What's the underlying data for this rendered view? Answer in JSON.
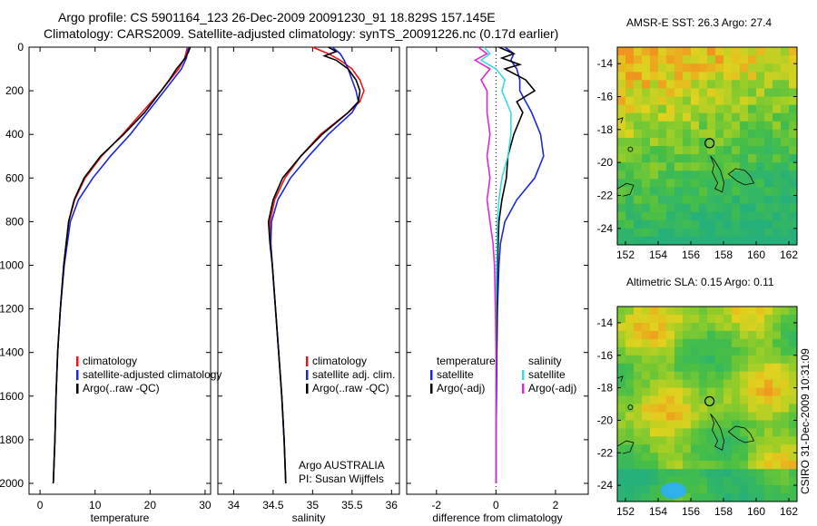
{
  "header": {
    "line1": "Argo profile: CS 5901164_123 26-Dec-2009 20091230_91 18.829S 157.145E",
    "line2": "Climatology: CARS2009. Satellite-adjusted climatology: synTS_20091226.nc (0.17d earlier)"
  },
  "footer_stamp": "CSIRO 31-Dec-2009 10:31:09",
  "colors": {
    "clim": "#e8161b",
    "sat": "#1d26d8",
    "argo": "#000000",
    "sal_sat": "#33dde0",
    "sal_argo": "#e326d8"
  },
  "chart_data": [
    {
      "type": "line",
      "id": "temperature",
      "xlabel": "temperature",
      "ylabel": "",
      "xlim": [
        -2,
        31
      ],
      "ylim": [
        2050,
        0
      ],
      "xticks": [
        0,
        10,
        20,
        30
      ],
      "yticks": [
        0,
        200,
        400,
        600,
        800,
        1000,
        1200,
        1400,
        1600,
        1800,
        2000
      ],
      "legend": [
        "climatology",
        "satellite-adjusted climatology",
        "Argo(..raw -QC)"
      ],
      "series": [
        {
          "name": "climatology",
          "color": "#e8161b",
          "depth": [
            0,
            50,
            100,
            200,
            300,
            400,
            500,
            600,
            700,
            800,
            1000,
            1200,
            1400,
            1600,
            1800,
            2000
          ],
          "values": [
            26.8,
            26.3,
            25.2,
            22.0,
            18.5,
            15.0,
            11.2,
            8.2,
            6.3,
            5.2,
            4.3,
            3.7,
            3.2,
            2.9,
            2.7,
            2.4
          ]
        },
        {
          "name": "satellite-adjusted climatology",
          "color": "#1d26d8",
          "depth": [
            0,
            50,
            100,
            200,
            300,
            400,
            500,
            600,
            700,
            800,
            1000,
            1200,
            1400,
            1600,
            1800,
            2000
          ],
          "values": [
            27.0,
            26.6,
            25.7,
            22.6,
            19.5,
            16.4,
            12.8,
            9.6,
            7.0,
            5.5,
            4.4,
            3.7,
            3.2,
            2.9,
            2.7,
            2.4
          ]
        },
        {
          "name": "Argo(..raw -QC)",
          "color": "#000000",
          "depth": [
            0,
            20,
            50,
            100,
            150,
            200,
            300,
            400,
            500,
            600,
            700,
            800,
            1000,
            1200,
            1400,
            1600,
            1800,
            2000
          ],
          "values": [
            27.3,
            27.0,
            26.4,
            24.8,
            23.5,
            22.0,
            19.0,
            15.2,
            11.0,
            8.0,
            6.2,
            5.2,
            4.3,
            3.7,
            3.2,
            2.9,
            2.7,
            2.4
          ]
        }
      ]
    },
    {
      "type": "line",
      "id": "salinity",
      "xlabel": "salinity",
      "xlim": [
        33.8,
        36.1
      ],
      "ylim": [
        2050,
        0
      ],
      "xticks": [
        34,
        34.5,
        35,
        35.5,
        36
      ],
      "legend": [
        "climatology",
        "satellite adj. clim.",
        "Argo(..raw -QC)"
      ],
      "annotation": [
        "Argo AUSTRALIA",
        "PI: Susan Wijffels"
      ],
      "series": [
        {
          "name": "climatology",
          "color": "#e8161b",
          "depth": [
            0,
            30,
            60,
            100,
            150,
            200,
            250,
            300,
            400,
            500,
            600,
            700,
            800,
            900,
            1000,
            1200,
            1400,
            1600,
            1800,
            2000
          ],
          "values": [
            35.0,
            35.2,
            35.35,
            35.5,
            35.6,
            35.65,
            35.6,
            35.45,
            35.1,
            34.85,
            34.65,
            34.52,
            34.46,
            34.47,
            34.49,
            34.53,
            34.57,
            34.61,
            34.64,
            34.66
          ]
        },
        {
          "name": "satellite adj. clim.",
          "color": "#1d26d8",
          "depth": [
            0,
            30,
            60,
            100,
            150,
            200,
            250,
            300,
            400,
            500,
            600,
            700,
            800,
            900,
            1000,
            1200,
            1400,
            1600,
            1800,
            2000
          ],
          "values": [
            35.25,
            35.35,
            35.4,
            35.45,
            35.5,
            35.55,
            35.58,
            35.5,
            35.2,
            34.95,
            34.72,
            34.56,
            34.48,
            34.47,
            34.49,
            34.53,
            34.57,
            34.61,
            34.64,
            34.66
          ]
        },
        {
          "name": "Argo(..raw -QC)",
          "color": "#000000",
          "depth": [
            0,
            20,
            40,
            60,
            100,
            150,
            200,
            250,
            300,
            400,
            500,
            600,
            700,
            800,
            900,
            1000,
            1200,
            1400,
            1600,
            1800,
            2000
          ],
          "values": [
            35.2,
            35.3,
            35.15,
            35.3,
            35.45,
            35.55,
            35.6,
            35.58,
            35.45,
            35.12,
            34.85,
            34.62,
            34.5,
            34.44,
            34.46,
            34.49,
            34.53,
            34.57,
            34.61,
            34.64,
            34.66
          ]
        }
      ]
    },
    {
      "type": "line",
      "id": "difference",
      "xlabel": "difference from climatology",
      "xlim": [
        -3,
        3.1
      ],
      "ylim": [
        2050,
        0
      ],
      "xticks": [
        -2,
        0,
        2
      ],
      "legend_left": [
        "temperature",
        "satellite",
        "Argo(-adj)"
      ],
      "legend_right": [
        "salinity",
        "satellite",
        "Argo(-adj)"
      ],
      "series": [
        {
          "name": "temperature satellite",
          "color": "#1d26d8",
          "depth": [
            0,
            30,
            60,
            100,
            150,
            200,
            300,
            400,
            500,
            600,
            700,
            800,
            900,
            1000,
            1200,
            1400,
            1600,
            1800,
            2000
          ],
          "values": [
            0.3,
            0.6,
            0.5,
            0.7,
            0.8,
            0.8,
            1.2,
            1.5,
            1.6,
            1.3,
            0.7,
            0.3,
            0.15,
            0.1,
            0.05,
            0.03,
            0.02,
            0.0,
            0.0
          ]
        },
        {
          "name": "temperature Argo(-adj)",
          "color": "#000000",
          "depth": [
            0,
            30,
            50,
            80,
            100,
            150,
            200,
            250,
            300,
            400,
            500,
            600,
            700,
            800,
            1000,
            1200,
            1400,
            1600,
            1800,
            2000
          ],
          "values": [
            0.1,
            0.6,
            0.2,
            0.8,
            0.3,
            1.0,
            1.3,
            0.7,
            0.9,
            0.6,
            0.4,
            0.35,
            0.2,
            0.1,
            0.05,
            0.03,
            0.02,
            0.01,
            0.0,
            0.0
          ]
        },
        {
          "name": "salinity satellite",
          "color": "#33dde0",
          "depth": [
            0,
            30,
            60,
            100,
            150,
            200,
            300,
            400,
            500,
            600,
            700,
            800,
            1000,
            1200,
            1400,
            1600,
            1800,
            2000
          ],
          "values": [
            -0.4,
            -0.2,
            -0.5,
            0.0,
            0.3,
            0.2,
            0.5,
            0.5,
            0.4,
            0.2,
            0.1,
            0.05,
            0.02,
            0.0,
            0.0,
            0.0,
            0.0,
            0.0
          ]
        },
        {
          "name": "salinity Argo(-adj)",
          "color": "#e326d8",
          "depth": [
            0,
            30,
            60,
            100,
            150,
            200,
            300,
            400,
            500,
            600,
            700,
            800,
            900,
            1000,
            1200,
            1400,
            1600,
            1800,
            2000
          ],
          "values": [
            -0.6,
            -0.3,
            -0.7,
            -0.2,
            -0.5,
            -0.3,
            -0.3,
            -0.2,
            -0.3,
            -0.2,
            -0.3,
            -0.2,
            -0.1,
            -0.05,
            -0.02,
            0.0,
            0.0,
            0.0,
            0.0
          ]
        }
      ]
    },
    {
      "type": "heatmap",
      "id": "sst-map",
      "title": "AMSR-E SST: 26.3 Argo: 27.4",
      "xlim": [
        151.5,
        162.5
      ],
      "ylim": [
        -25,
        -13
      ],
      "xticks": [
        152,
        154,
        156,
        158,
        160,
        162
      ],
      "yticks": [
        -14,
        -16,
        -18,
        -20,
        -22,
        -24
      ],
      "marker": {
        "lon": 157.145,
        "lat": -18.829
      }
    },
    {
      "type": "heatmap",
      "id": "sla-map",
      "title": "Altimetric SLA: 0.15 Argo: 0.11",
      "xlim": [
        151.5,
        162.5
      ],
      "ylim": [
        -25,
        -13
      ],
      "xticks": [
        152,
        154,
        156,
        158,
        160,
        162
      ],
      "yticks": [
        -14,
        -16,
        -18,
        -20,
        -22,
        -24
      ],
      "marker": {
        "lon": 157.145,
        "lat": -18.829
      }
    }
  ]
}
